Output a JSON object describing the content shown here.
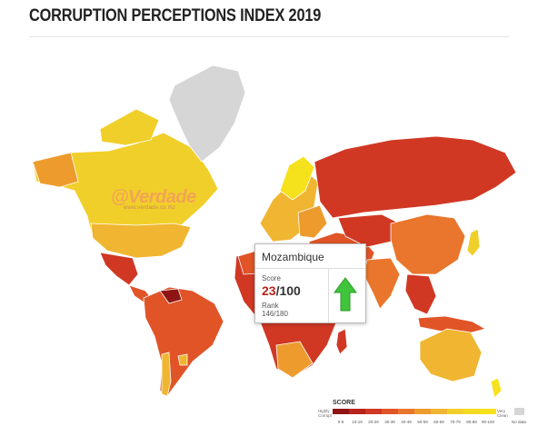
{
  "title": "CORRUPTION PERCEPTIONS INDEX 2019",
  "colors": {
    "very_clean": "#f6e21c",
    "score_70": "#f1cf2a",
    "score_60": "#f0b531",
    "score_50": "#ee9b2e",
    "score_40": "#e9762c",
    "score_30": "#e05427",
    "score_20": "#d03824",
    "score_10": "#b8231b",
    "score_0": "#8f1514",
    "no_data": "#d6d6d6",
    "score_red": "#b8231b",
    "arrow_green": "#3fc43b"
  },
  "watermark": {
    "name": "@Verdade",
    "url": "www.verdade.co.mz"
  },
  "tooltip": {
    "country": "Mozambique",
    "score_label": "Score",
    "score_value": "23",
    "score_max": "/100",
    "rank_label": "Rank",
    "rank_value": "146/180",
    "trend_icon": "up-arrow-icon"
  },
  "legend": {
    "title": "SCORE",
    "low_label": "Highly Corrupt",
    "high_label": "Very Clean",
    "ranges": [
      "0-9",
      "10-19",
      "20-29",
      "30-39",
      "40-49",
      "50-59",
      "60-69",
      "70-79",
      "80-89",
      "90-100"
    ],
    "no_data_label": "No data"
  }
}
